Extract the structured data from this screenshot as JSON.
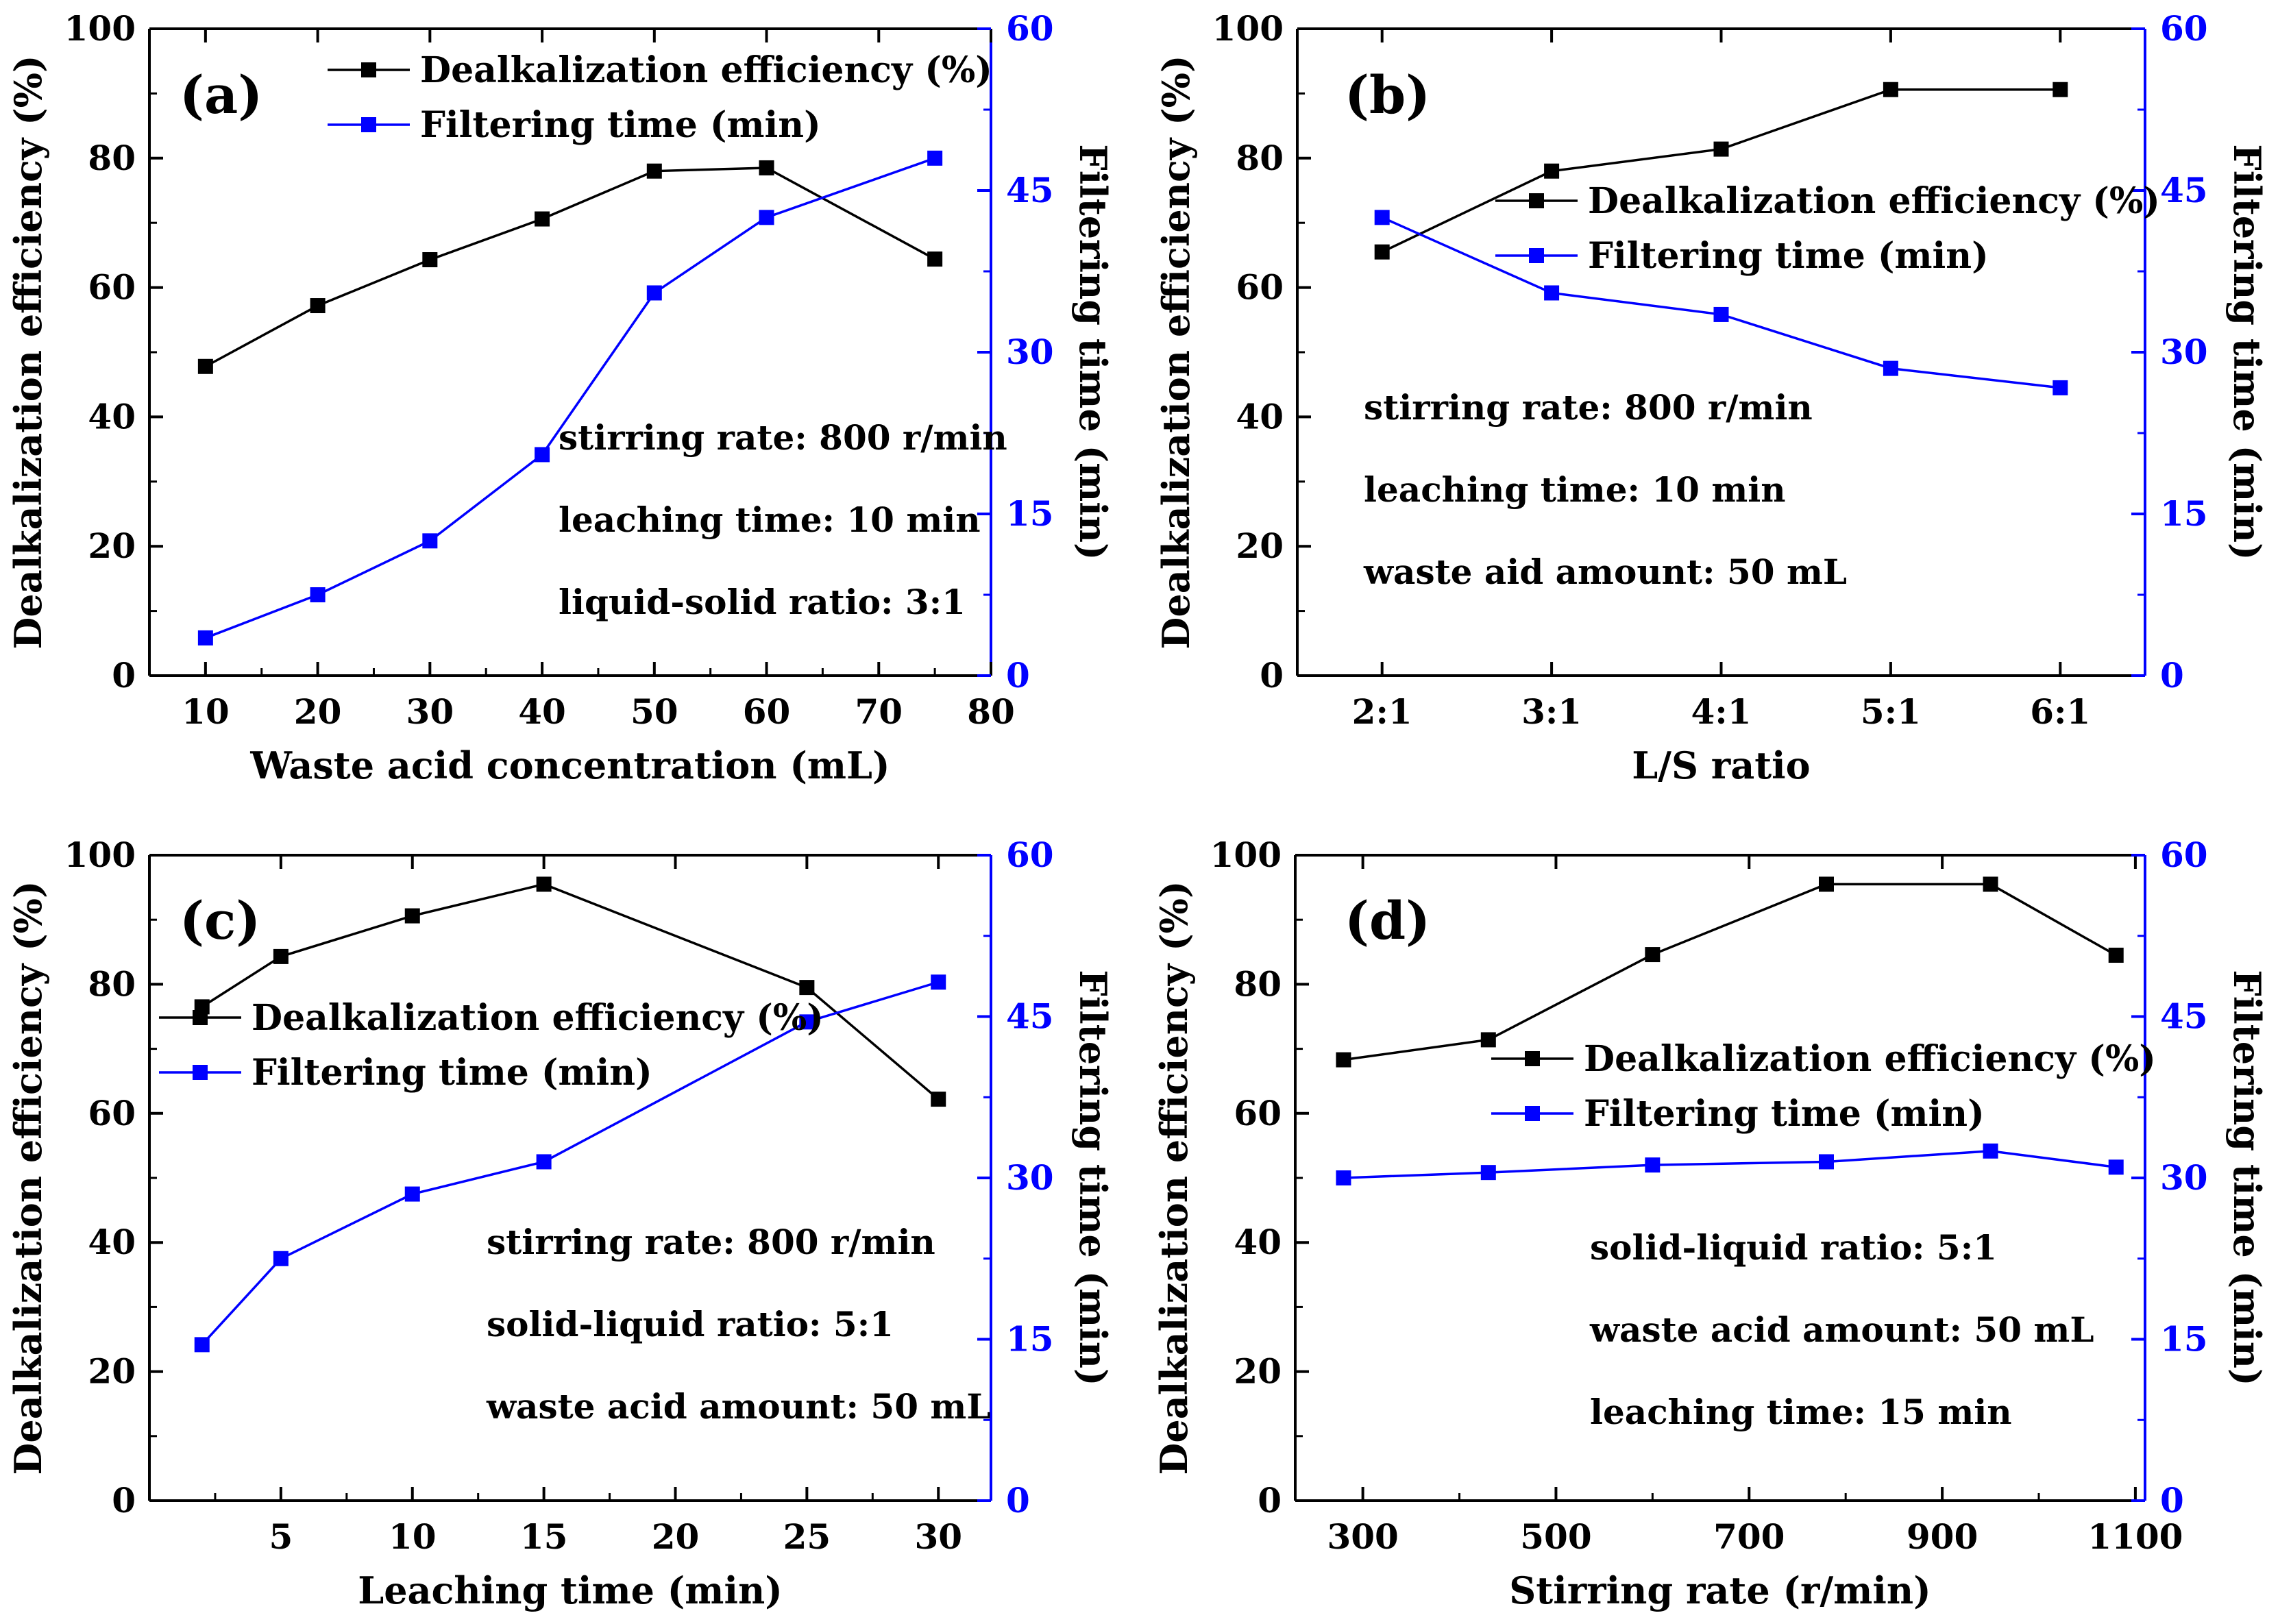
{
  "colors": {
    "efficiency": "#000000",
    "filtering": "#0000ff",
    "axis": "#000000"
  },
  "chart_data": [
    {
      "type": "line",
      "panel_label": "(a)",
      "xlabel": "Waste acid concentration (mL)",
      "ylabel": "Dealkalization efficiency (%)",
      "y2label": "Filtering time (min)",
      "x_is_categorical": false,
      "xlim": [
        5,
        80
      ],
      "xticks": [
        10,
        20,
        30,
        40,
        50,
        60,
        70,
        80
      ],
      "xticklabels": [
        "10",
        "20",
        "30",
        "40",
        "50",
        "60",
        "70",
        "80"
      ],
      "ylim": [
        0,
        100
      ],
      "yticks": [
        0,
        20,
        40,
        60,
        80,
        100
      ],
      "y2lim": [
        0,
        60
      ],
      "y2ticks": [
        0,
        15,
        30,
        45,
        60
      ],
      "legend_position": "top-right",
      "series": [
        {
          "name": "Dealkalization efficiency (%)",
          "axis": "left",
          "x": [
            10,
            20,
            30,
            40,
            50,
            60,
            75
          ],
          "values": [
            47.8,
            57.2,
            64.3,
            70.6,
            78.0,
            78.5,
            64.4
          ]
        },
        {
          "name": "Filtering time (min)",
          "axis": "right",
          "x": [
            10,
            20,
            30,
            40,
            50,
            60,
            75
          ],
          "values": [
            3.5,
            7.5,
            12.5,
            20.5,
            35.5,
            42.5,
            48.0
          ]
        }
      ],
      "annotations": [
        "stirring rate: 800 r/min",
        "leaching time: 10 min",
        "liquid-solid ratio: 3:1"
      ]
    },
    {
      "type": "line",
      "panel_label": "(b)",
      "xlabel": "L/S ratio",
      "ylabel": "Dealkalization efficiency (%)",
      "y2label": "Filtering time (min)",
      "x_is_categorical": true,
      "xlim": [
        0.5,
        5.5
      ],
      "xticks": [
        1,
        2,
        3,
        4,
        5
      ],
      "xticklabels": [
        "2:1",
        "3:1",
        "4:1",
        "5:1",
        "6:1"
      ],
      "ylim": [
        0,
        100
      ],
      "yticks": [
        0,
        20,
        40,
        60,
        80,
        100
      ],
      "y2lim": [
        0,
        60
      ],
      "y2ticks": [
        0,
        15,
        30,
        45,
        60
      ],
      "legend_position": "upper-center-right",
      "series": [
        {
          "name": "Dealkalization efficiency (%)",
          "axis": "left",
          "x": [
            1,
            2,
            3,
            4,
            5
          ],
          "values": [
            65.5,
            78.0,
            81.4,
            90.6,
            90.6
          ]
        },
        {
          "name": "Filtering time (min)",
          "axis": "right",
          "x": [
            1,
            2,
            3,
            4,
            5
          ],
          "values": [
            42.5,
            35.5,
            33.5,
            28.5,
            26.7
          ]
        }
      ],
      "annotations": [
        "stirring rate: 800 r/min",
        "leaching time: 10 min",
        "waste aid amount: 50 mL"
      ]
    },
    {
      "type": "line",
      "panel_label": "(c)",
      "xlabel": "Leaching time (min)",
      "ylabel": "Dealkalization efficiency (%)",
      "y2label": "Filtering time (min)",
      "x_is_categorical": false,
      "xlim": [
        0,
        32
      ],
      "xticks": [
        5,
        10,
        15,
        20,
        25,
        30
      ],
      "xticklabels": [
        "5",
        "10",
        "15",
        "20",
        "25",
        "30"
      ],
      "ylim": [
        0,
        100
      ],
      "yticks": [
        0,
        20,
        40,
        60,
        80,
        100
      ],
      "y2lim": [
        0,
        60
      ],
      "y2ticks": [
        0,
        15,
        30,
        45,
        60
      ],
      "legend_position": "center-left",
      "series": [
        {
          "name": "Dealkalization efficiency (%)",
          "axis": "left",
          "x": [
            2,
            5,
            10,
            15,
            25,
            30
          ],
          "values": [
            76.5,
            84.3,
            90.6,
            95.5,
            79.5,
            62.2
          ]
        },
        {
          "name": "Filtering time (min)",
          "axis": "right",
          "x": [
            2,
            5,
            10,
            15,
            25,
            30
          ],
          "values": [
            14.5,
            22.5,
            28.5,
            31.5,
            44.5,
            48.2
          ]
        }
      ],
      "annotations": [
        "stirring rate: 800 r/min",
        "solid-liquid ratio: 5:1",
        "waste acid amount: 50 mL"
      ]
    },
    {
      "type": "line",
      "panel_label": "(d)",
      "xlabel": "Stirring rate (r/min)",
      "ylabel": "Dealkalization efficiency (%)",
      "y2label": "Filtering time (min)",
      "x_is_categorical": false,
      "xlim": [
        230,
        1110
      ],
      "xticks": [
        300,
        500,
        700,
        900,
        1100
      ],
      "xticklabels": [
        "300",
        "500",
        "700",
        "900",
        "1100"
      ],
      "ylim": [
        0,
        100
      ],
      "yticks": [
        0,
        20,
        40,
        60,
        80,
        100
      ],
      "y2lim": [
        0,
        60
      ],
      "y2ticks": [
        0,
        15,
        30,
        45,
        60
      ],
      "legend_position": "center-right",
      "series": [
        {
          "name": "Dealkalization efficiency (%)",
          "axis": "left",
          "x": [
            280,
            430,
            600,
            780,
            950,
            1080
          ],
          "values": [
            68.3,
            71.4,
            84.6,
            95.5,
            95.5,
            84.5
          ]
        },
        {
          "name": "Filtering time (min)",
          "axis": "right",
          "x": [
            280,
            430,
            600,
            780,
            950,
            1080
          ],
          "values": [
            30.0,
            30.5,
            31.2,
            31.5,
            32.5,
            31.0
          ]
        }
      ],
      "annotations": [
        "solid-liquid ratio: 5:1",
        "waste acid amount: 50 mL",
        "leaching time: 15 min"
      ]
    }
  ]
}
